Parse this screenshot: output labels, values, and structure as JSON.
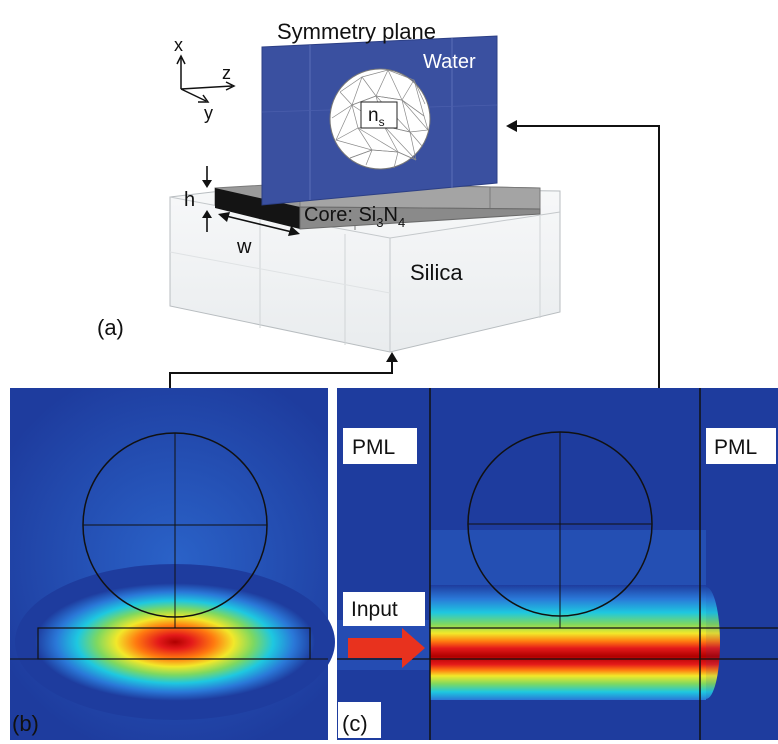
{
  "panel_a": {
    "tag": "(a)",
    "symmetry_plane_label": "Symmetry plane",
    "water_label": "Water",
    "sphere_index_label": "n",
    "sphere_index_sub": "s",
    "core_label_prefix": "Core: Si",
    "core_sub_1": "3",
    "core_mid": "N",
    "core_sub_2": "4",
    "silica_label": "Silica",
    "height_label": "h",
    "width_label": "w",
    "axis_x": "x",
    "axis_y": "y",
    "axis_z": "z"
  },
  "panel_b": {
    "tag": "(b)"
  },
  "panel_c": {
    "tag": "(c)",
    "pml_left": "PML",
    "pml_right": "PML",
    "input_label": "Input"
  },
  "colors": {
    "water_blue": "#3a50a0",
    "field_background": "#1e3c9e",
    "silica_face": "#f2f4f5",
    "core_gray": "#8c8c8c",
    "core_edge": "#111111",
    "input_arrow": "#e8321e"
  }
}
